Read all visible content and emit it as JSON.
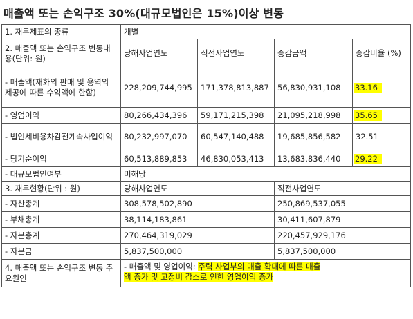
{
  "title": "매출액 또는 손익구조 30%(대규모법인은 15%)이상 변동",
  "row1": {
    "label": "1. 재무제표의 종류",
    "value": "개별"
  },
  "section2": {
    "label": "2. 매출액 또는 손익구조 변동내용(단위: 원)",
    "headers": [
      "당해사업연도",
      "직전사업연도",
      "증감금액",
      "증감비율 (%)"
    ],
    "rows": [
      {
        "label": "- 매출액(재화의 판매 및 용역의 제공에 따른 수익액에 한함)",
        "current": "228,209,744,995",
        "prior": "171,378,813,887",
        "change": "56,830,931,108",
        "ratio": "33.16"
      },
      {
        "label": "- 영업이익",
        "current": "80,266,434,396",
        "prior": "59,171,215,398",
        "change": "21,095,218,998",
        "ratio": "35.65"
      },
      {
        "label": "- 법인세비용차감전계속사업이익",
        "current": "80,232,997,070",
        "prior": "60,547,140,488",
        "change": "19,685,856,582",
        "ratio": "32.51"
      },
      {
        "label": "- 당기순이익",
        "current": "60,513,889,853",
        "prior": "46,830,053,413",
        "change": "13,683,836,440",
        "ratio": "29.22"
      }
    ],
    "large_corp": {
      "label": "- 대규모법인여부",
      "value": "미해당"
    }
  },
  "section3": {
    "label": "3. 재무현황(단위 : 원)",
    "headers": [
      "당해사업연도",
      "직전사업연도"
    ],
    "rows": [
      {
        "label": "- 자산총계",
        "current": "308,578,502,890",
        "prior": "250,869,537,055"
      },
      {
        "label": "- 부채총계",
        "current": "38,114,183,861",
        "prior": "30,411,607,879"
      },
      {
        "label": "- 자본총계",
        "current": "270,464,319,029",
        "prior": "220,457,929,176"
      },
      {
        "label": "- 자본금",
        "current": "5,837,500,000",
        "prior": "5,837,500,000"
      }
    ]
  },
  "section4": {
    "label": "4. 매출액 또는 손익구조 변동 주요원인",
    "prefix": "- 매출액 및 영업이익: ",
    "reason_a": "주력 사업부의 매출 확대에 따른 매출",
    "reason_b": "액 증가 및 고정비 감소로 인한 영업이익 증가"
  },
  "colors": {
    "highlight": "#ffff00",
    "border": "#555555"
  }
}
